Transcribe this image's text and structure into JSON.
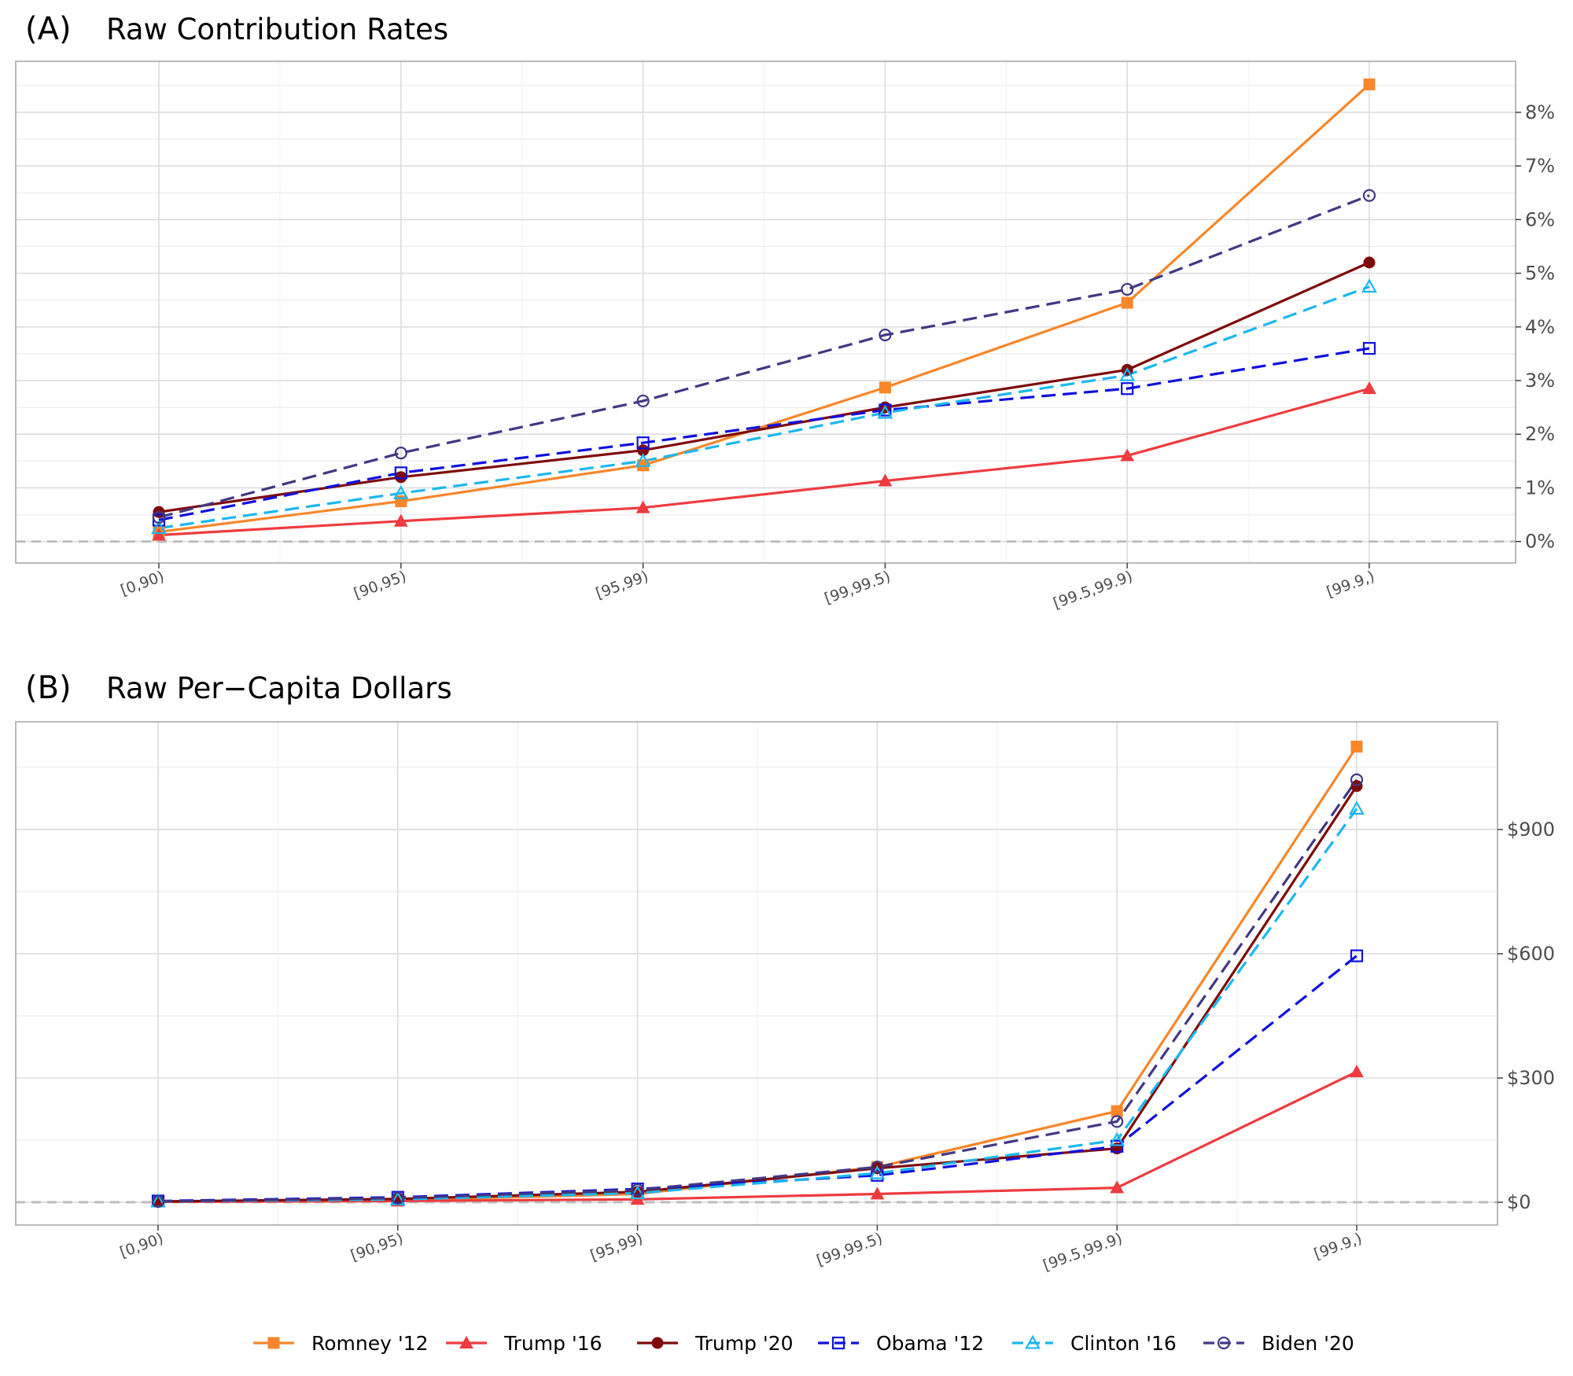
{
  "legend": {
    "items": [
      "Romney '12",
      "Trump '16",
      "Trump '20",
      "Obama '12",
      "Clinton '16",
      "Biden '20"
    ]
  },
  "series_style": [
    {
      "name": "Romney '12",
      "color": "#F8862A",
      "dash": "solid",
      "marker": "square-filled"
    },
    {
      "name": "Trump '16",
      "color": "#EE3B3F",
      "dash": "solid",
      "marker": "triangle-filled"
    },
    {
      "name": "Trump '20",
      "color": "#7F0A0A",
      "dash": "solid",
      "marker": "circle-filled"
    },
    {
      "name": "Obama '12",
      "color": "#1010E0",
      "dash": "dashed",
      "marker": "square-open"
    },
    {
      "name": "Clinton '16",
      "color": "#1BB7EF",
      "dash": "dashed",
      "marker": "triangle-open"
    },
    {
      "name": "Biden '20",
      "color": "#413884",
      "dash": "dashed",
      "marker": "circle-open"
    }
  ],
  "chart_data": [
    {
      "type": "line",
      "panel_label": "(A)",
      "title": "Raw Contribution Rates",
      "categories": [
        "[0,90)",
        "[90,95)",
        "[95,99)",
        "[99,99.5)",
        "[99.5,99.9)",
        "[99.9,)"
      ],
      "ylim": [
        -0.4,
        8.95
      ],
      "yticks": [
        0,
        1,
        2,
        3,
        4,
        5,
        6,
        7,
        8
      ],
      "ytick_labels": [
        "0%",
        "1%",
        "2%",
        "3%",
        "4%",
        "5%",
        "6%",
        "7%",
        "8%"
      ],
      "ylabel": "",
      "xlabel": "",
      "axis_position": "right",
      "series": [
        {
          "name": "Romney '12",
          "values": [
            0.18,
            0.75,
            1.42,
            2.87,
            4.45,
            8.52
          ]
        },
        {
          "name": "Trump '16",
          "values": [
            0.12,
            0.38,
            0.63,
            1.13,
            1.6,
            2.85
          ]
        },
        {
          "name": "Trump '20",
          "values": [
            0.55,
            1.2,
            1.7,
            2.5,
            3.2,
            5.2
          ]
        },
        {
          "name": "Obama '12",
          "values": [
            0.4,
            1.28,
            1.84,
            2.45,
            2.85,
            3.6
          ]
        },
        {
          "name": "Clinton '16",
          "values": [
            0.25,
            0.9,
            1.5,
            2.4,
            3.1,
            4.75
          ]
        },
        {
          "name": "Biden '20",
          "values": [
            0.45,
            1.65,
            2.62,
            3.85,
            4.7,
            6.45
          ]
        }
      ]
    },
    {
      "type": "line",
      "panel_label": "(B)",
      "title": "Raw Per−Capita Dollars",
      "categories": [
        "[0,90)",
        "[90,95)",
        "[95,99)",
        "[99,99.5)",
        "[99.5,99.9)",
        "[99.9,)"
      ],
      "ylim": [
        -55,
        1160
      ],
      "yticks": [
        0,
        300,
        600,
        900
      ],
      "ytick_labels": [
        "$0",
        "$300",
        "$600",
        "$900"
      ],
      "ylabel": "",
      "xlabel": "",
      "axis_position": "right",
      "series": [
        {
          "name": "Romney '12",
          "values": [
            2,
            5,
            20,
            85,
            220,
            1100
          ]
        },
        {
          "name": "Trump '16",
          "values": [
            1,
            3,
            7,
            20,
            35,
            315
          ]
        },
        {
          "name": "Trump '20",
          "values": [
            2,
            8,
            25,
            82,
            130,
            1005
          ]
        },
        {
          "name": "Obama '12",
          "values": [
            3,
            12,
            32,
            65,
            135,
            595
          ]
        },
        {
          "name": "Clinton '16",
          "values": [
            2,
            7,
            22,
            70,
            150,
            950
          ]
        },
        {
          "name": "Biden '20",
          "values": [
            2,
            10,
            30,
            85,
            195,
            1020
          ]
        }
      ]
    }
  ]
}
